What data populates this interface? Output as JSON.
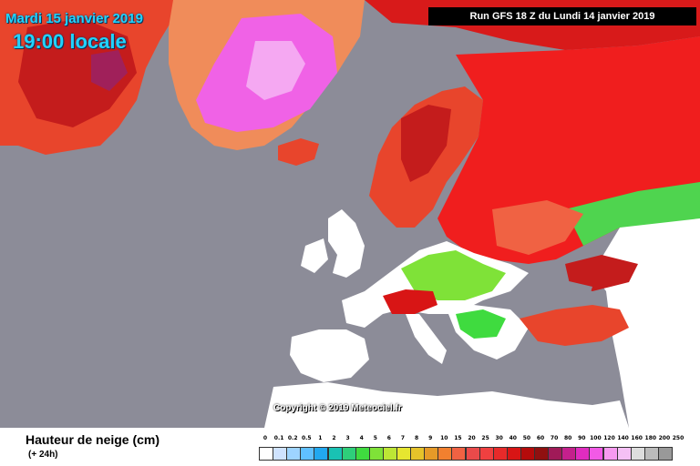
{
  "map": {
    "date": "Mardi 15 janvier 2019",
    "time": "19:00 locale",
    "run": "Run GFS 18 Z du Lundi 14 janvier 2019",
    "copyright": "Copyright © 2019 Meteociel.fr"
  },
  "legend": {
    "title": "Hauteur de neige (cm)",
    "subtitle": "(+ 24h)",
    "ticks": [
      "0",
      "0.1",
      "0.2",
      "0.5",
      "1",
      "2",
      "3",
      "4",
      "5",
      "6",
      "7",
      "8",
      "9",
      "10",
      "15",
      "20",
      "25",
      "30",
      "40",
      "50",
      "60",
      "70",
      "80",
      "90",
      "100",
      "120",
      "140",
      "160",
      "180",
      "200",
      "250"
    ],
    "colors": [
      "#ffffff",
      "#cfe3ff",
      "#9ed4ff",
      "#60c0ff",
      "#22a8f0",
      "#19c2b3",
      "#2ecf7a",
      "#3fdb3f",
      "#7fe238",
      "#bde635",
      "#e6e630",
      "#e6c32a",
      "#e69a28",
      "#f2802f",
      "#f06243",
      "#ea4a4a",
      "#f04040",
      "#e82a2a",
      "#d81515",
      "#b50b0b",
      "#901010",
      "#a01a58",
      "#c4208c",
      "#e02cc0",
      "#f25ae6",
      "#f79af0",
      "#f5c0f5",
      "#dddddd",
      "#bbbbbb",
      "#999999"
    ]
  }
}
